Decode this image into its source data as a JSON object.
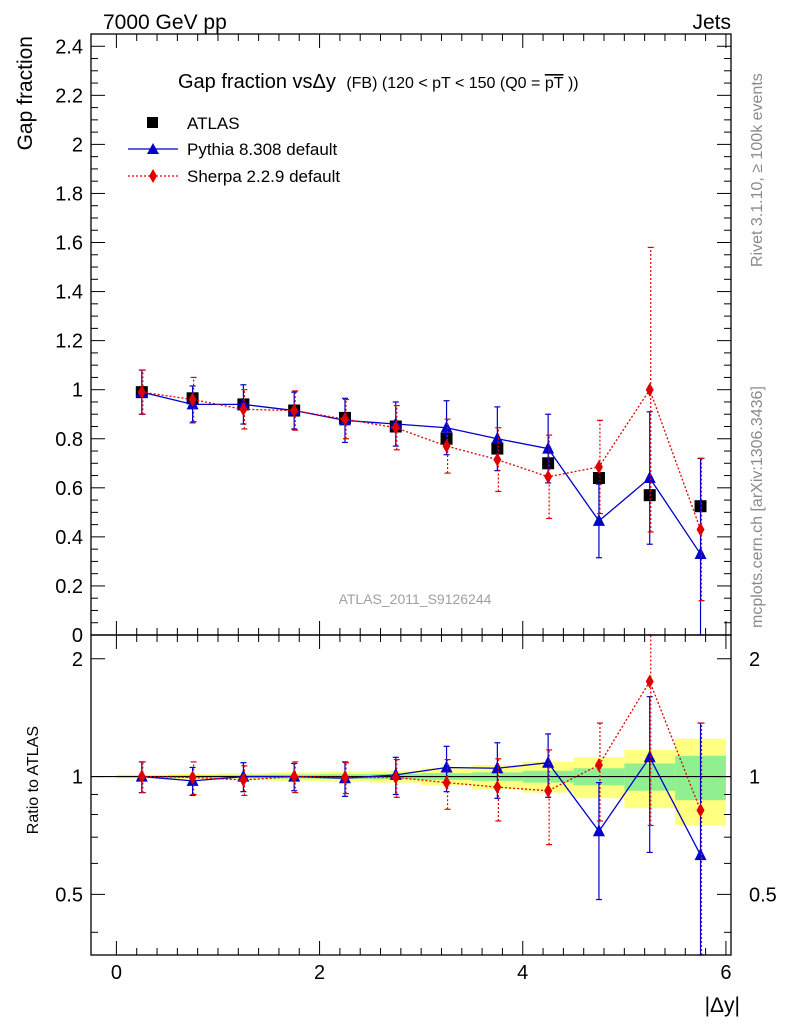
{
  "header": {
    "left": "7000 GeV pp",
    "right": "Jets"
  },
  "side": {
    "top": "Rivet 3.1.10, ≥ 100k events",
    "bottom": "mcplots.cern.ch [arXiv:1306.3436]"
  },
  "chart_data": [
    {
      "type": "scatter",
      "panel": "main",
      "title_main": "Gap fraction vsΔy",
      "title_rest": "(FB) (120 < pT < 150 (Q0 =",
      "title_pt": "pT",
      "title_end": "))",
      "ylabel": "Gap fraction",
      "xlim": [
        -0.25,
        6.05
      ],
      "ylim": [
        0,
        2.45
      ],
      "yticks": [
        "0",
        "0.2",
        "0.4",
        "0.6",
        "0.8",
        "1",
        "1.2",
        "1.4",
        "1.6",
        "1.8",
        "2",
        "2.2",
        "2.4"
      ],
      "watermark": "ATLAS_2011_S9126244",
      "legend_position": "top-left",
      "x": [
        0.25,
        0.75,
        1.25,
        1.75,
        2.25,
        2.75,
        3.25,
        3.75,
        4.25,
        4.75,
        5.25,
        5.75
      ],
      "series": [
        {
          "name": "ATLAS",
          "color": "#000000",
          "marker": "square",
          "values": [
            0.99,
            0.965,
            0.94,
            0.915,
            0.885,
            0.85,
            0.8,
            0.76,
            0.7,
            0.64,
            0.57,
            0.525
          ]
        },
        {
          "name": "Pythia 8.308 default",
          "color": "#0000cc",
          "marker": "triangle",
          "values": [
            0.99,
            0.94,
            0.94,
            0.915,
            0.875,
            0.86,
            0.845,
            0.8,
            0.76,
            0.465,
            0.64,
            0.33
          ],
          "err": [
            0.09,
            0.075,
            0.08,
            0.075,
            0.09,
            0.09,
            0.11,
            0.13,
            0.14,
            0.15,
            0.27,
            0.39
          ]
        },
        {
          "name": "Sherpa 2.2.9 default",
          "color": "#e00000",
          "marker": "diamond",
          "values": [
            0.99,
            0.96,
            0.92,
            0.915,
            0.88,
            0.845,
            0.77,
            0.715,
            0.645,
            0.685,
            1.0,
            0.43
          ],
          "err": [
            0.09,
            0.09,
            0.08,
            0.08,
            0.08,
            0.09,
            0.11,
            0.13,
            0.17,
            0.19,
            0.58,
            0.29
          ]
        }
      ]
    },
    {
      "type": "scatter",
      "panel": "ratio",
      "ylabel": "Ratio to ATLAS",
      "xlabel": "|Δy|",
      "xlim": [
        -0.25,
        6.05
      ],
      "ylim": [
        0.35,
        2.3
      ],
      "xticks": [
        "0",
        "2",
        "4",
        "6"
      ],
      "yticks_left": [
        "0.5",
        "1",
        "2"
      ],
      "yticks_right": [
        "0.5",
        "1",
        "2"
      ],
      "reference_line": 1,
      "band_inner": {
        "color": "#90f090",
        "half_width": [
          0.005,
          0.008,
          0.01,
          0.012,
          0.014,
          0.016,
          0.02,
          0.025,
          0.035,
          0.05,
          0.08,
          0.13
        ]
      },
      "band_outer": {
        "color": "#ffff80",
        "half_width": [
          0.01,
          0.015,
          0.02,
          0.025,
          0.03,
          0.035,
          0.05,
          0.07,
          0.09,
          0.12,
          0.17,
          0.25
        ]
      },
      "x": [
        0.25,
        0.75,
        1.25,
        1.75,
        2.25,
        2.75,
        3.25,
        3.75,
        4.25,
        4.75,
        5.25,
        5.75
      ],
      "series": [
        {
          "name": "Pythia 8.308 default",
          "color": "#0000cc",
          "marker": "triangle",
          "values": [
            1.0,
            0.975,
            1.0,
            1.0,
            0.99,
            1.01,
            1.055,
            1.05,
            1.085,
            0.725,
            1.12,
            0.63
          ],
          "err": [
            0.09,
            0.08,
            0.085,
            0.08,
            0.1,
            0.11,
            0.14,
            0.17,
            0.2,
            0.24,
            0.48,
            0.74
          ]
        },
        {
          "name": "Sherpa 2.2.9 default",
          "color": "#e00000",
          "marker": "diamond",
          "values": [
            1.0,
            0.995,
            0.98,
            1.0,
            0.995,
            0.995,
            0.965,
            0.94,
            0.92,
            1.07,
            1.75,
            0.82
          ],
          "err": [
            0.09,
            0.095,
            0.085,
            0.09,
            0.09,
            0.11,
            0.14,
            0.17,
            0.25,
            0.3,
            1.0,
            0.55
          ]
        }
      ]
    }
  ]
}
